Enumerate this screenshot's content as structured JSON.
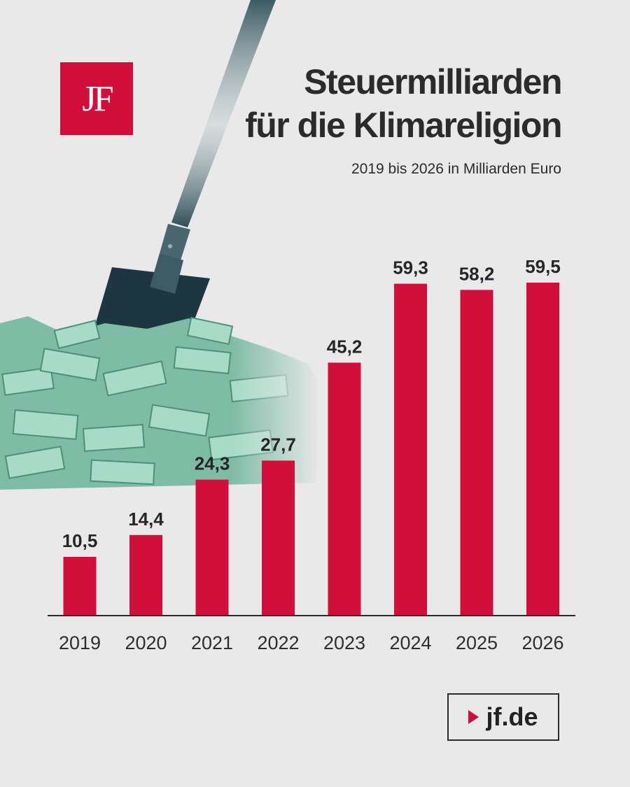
{
  "brand": {
    "logo_text": "JF",
    "source_label": "jf.de",
    "accent": "#d20f3a"
  },
  "header": {
    "title_line1": "Steuermilliarden",
    "title_line2": "für die Klimareligion",
    "subtitle": "2019 bis 2026 in Milliarden Euro"
  },
  "illustration": {
    "icon": "shovel-money-icon"
  },
  "chart_data": {
    "type": "bar",
    "title": "Steuermilliarden für die Klimareligion",
    "subtitle": "2019 bis 2026 in Milliarden Euro",
    "xlabel": "",
    "ylabel": "",
    "categories": [
      "2019",
      "2020",
      "2021",
      "2022",
      "2023",
      "2024",
      "2025",
      "2026"
    ],
    "values": [
      10.5,
      14.4,
      24.3,
      27.7,
      45.2,
      59.3,
      58.2,
      59.5
    ],
    "value_labels": [
      "10,5",
      "14,4",
      "24,3",
      "27,7",
      "45,2",
      "59,3",
      "58,2",
      "59,5"
    ],
    "ylim": [
      0,
      59.5
    ],
    "grid": false,
    "bar_color": "#d20f3a"
  }
}
